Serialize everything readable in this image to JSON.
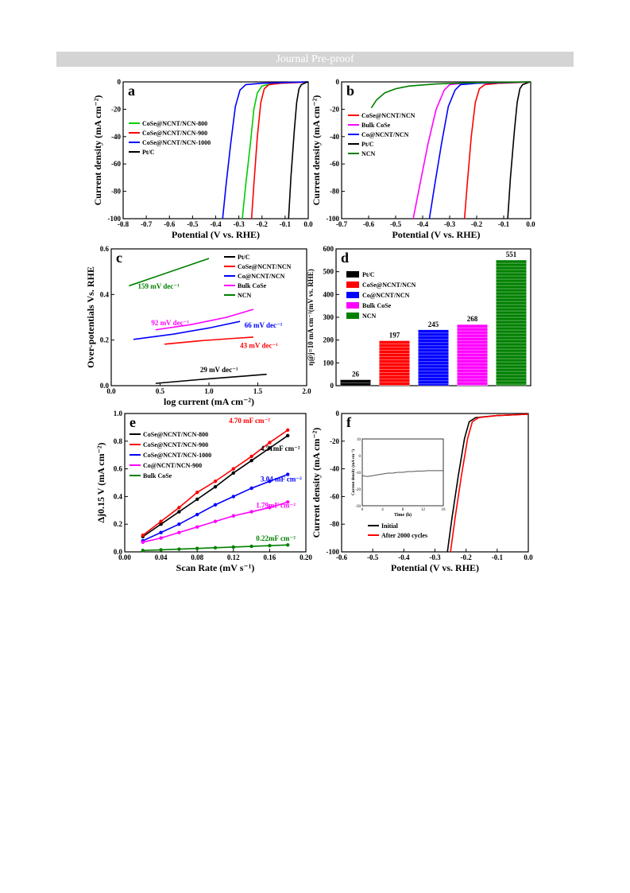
{
  "header": {
    "banner": "Journal Pre-proof"
  },
  "colors": {
    "black": "#000000",
    "red": "#ff0000",
    "blue": "#0000ff",
    "green": "#00cc00",
    "magenta": "#ff00ff",
    "darkgreen": "#008000",
    "banner_bg": "#d4d4d4"
  },
  "chart_data": [
    {
      "id": "a",
      "type": "line",
      "panel_label": "a",
      "xlabel": "Potential (V vs. RHE)",
      "ylabel": "Current density (mA cm⁻²)",
      "xlim": [
        -0.8,
        0.0
      ],
      "ylim": [
        -100,
        0
      ],
      "xticks": [
        "-0.8",
        "-0.7",
        "-0.6",
        "-0.5",
        "-0.4",
        "-0.3",
        "-0.2",
        "-0.1",
        "0.0"
      ],
      "yticks": [
        "-100",
        "-80",
        "-60",
        "-40",
        "-20",
        "0"
      ],
      "series": [
        {
          "name": "CoSe@NCNT/NCN-800",
          "color": "green",
          "x": [
            -0.285,
            -0.27,
            -0.25,
            -0.235,
            -0.22,
            -0.2,
            -0.15,
            -0.1,
            0
          ],
          "y": [
            -100,
            -75,
            -45,
            -20,
            -8,
            -3,
            -1,
            -0.5,
            0
          ]
        },
        {
          "name": "CoSe@NCNT/NCN-900",
          "color": "red",
          "x": [
            -0.245,
            -0.235,
            -0.22,
            -0.205,
            -0.19,
            -0.17,
            -0.12,
            -0.05,
            0
          ],
          "y": [
            -100,
            -75,
            -40,
            -15,
            -5,
            -2,
            -1,
            -0.5,
            0
          ]
        },
        {
          "name": "CoSe@NCNT/NCN-1000",
          "color": "blue",
          "x": [
            -0.37,
            -0.355,
            -0.335,
            -0.315,
            -0.295,
            -0.27,
            -0.2,
            -0.1,
            0
          ],
          "y": [
            -100,
            -75,
            -45,
            -18,
            -6,
            -2,
            -1,
            -0.5,
            0
          ]
        },
        {
          "name": "Pt/C",
          "color": "black",
          "x": [
            -0.085,
            -0.075,
            -0.06,
            -0.05,
            -0.04,
            -0.03,
            -0.01,
            0
          ],
          "y": [
            -100,
            -70,
            -35,
            -15,
            -5,
            -2,
            -0.5,
            0
          ]
        }
      ]
    },
    {
      "id": "b",
      "type": "line",
      "panel_label": "b",
      "xlabel": "Potential (V vs. RHE)",
      "ylabel": "Current density (mA cm⁻²)",
      "xlim": [
        -0.7,
        0.0
      ],
      "ylim": [
        -100,
        0
      ],
      "xticks": [
        "-0.7",
        "-0.6",
        "-0.5",
        "-0.4",
        "-0.3",
        "-0.2",
        "-0.1",
        "0.0"
      ],
      "yticks": [
        "-100",
        "-80",
        "-60",
        "-40",
        "-20",
        "0"
      ],
      "series": [
        {
          "name": "CoSe@NCNT/NCN",
          "color": "red",
          "x": [
            -0.245,
            -0.235,
            -0.22,
            -0.205,
            -0.19,
            -0.17,
            -0.12,
            -0.05,
            0
          ],
          "y": [
            -100,
            -75,
            -40,
            -15,
            -5,
            -2,
            -1,
            -0.5,
            0
          ]
        },
        {
          "name": "Bulk CoSe",
          "color": "magenta",
          "x": [
            -0.435,
            -0.41,
            -0.38,
            -0.35,
            -0.32,
            -0.3,
            -0.25,
            -0.15,
            0
          ],
          "y": [
            -100,
            -75,
            -45,
            -20,
            -6,
            -2,
            -1,
            -0.5,
            0
          ]
        },
        {
          "name": "Co@NCNT/NCN",
          "color": "blue",
          "x": [
            -0.375,
            -0.355,
            -0.33,
            -0.305,
            -0.28,
            -0.26,
            -0.2,
            -0.1,
            0
          ],
          "y": [
            -100,
            -75,
            -45,
            -18,
            -6,
            -2,
            -1,
            -0.5,
            0
          ]
        },
        {
          "name": "Pt/C",
          "color": "black",
          "x": [
            -0.085,
            -0.075,
            -0.06,
            -0.05,
            -0.04,
            -0.03,
            -0.01,
            0
          ],
          "y": [
            -100,
            -70,
            -35,
            -15,
            -5,
            -2,
            -0.5,
            0
          ]
        },
        {
          "name": "NCN",
          "color": "darkgreen",
          "x": [
            -0.59,
            -0.57,
            -0.54,
            -0.5,
            -0.45,
            -0.35,
            -0.2,
            0
          ],
          "y": [
            -19,
            -13,
            -8,
            -5,
            -3,
            -1.5,
            -0.5,
            0
          ]
        }
      ]
    },
    {
      "id": "c",
      "type": "line",
      "panel_label": "c",
      "xlabel": "log current (mA cm⁻²)",
      "ylabel": "Over-potentials Vs. RHE",
      "xlim": [
        0.0,
        2.2
      ],
      "ylim": [
        0.0,
        0.6
      ],
      "xticks": [
        "0.0",
        "0.5",
        "1.0",
        "1.5",
        "2.0"
      ],
      "yticks": [
        "0.0",
        "0.2",
        "0.4",
        "0.6"
      ],
      "series": [
        {
          "name": "Pt/C",
          "color": "black",
          "x": [
            0.5,
            1.0,
            1.5,
            1.75
          ],
          "y": [
            0.01,
            0.027,
            0.042,
            0.05
          ]
        },
        {
          "name": "CoSe@NCNT/NCN",
          "color": "red",
          "x": [
            0.6,
            1.0,
            1.4,
            1.6
          ],
          "y": [
            0.182,
            0.197,
            0.208,
            0.213
          ]
        },
        {
          "name": "Co@NCNT/NCN",
          "color": "blue",
          "x": [
            0.25,
            0.7,
            1.1,
            1.45
          ],
          "y": [
            0.203,
            0.226,
            0.253,
            0.282
          ]
        },
        {
          "name": "Bulk CoSe",
          "color": "magenta",
          "x": [
            0.5,
            0.9,
            1.3,
            1.6
          ],
          "y": [
            0.245,
            0.268,
            0.3,
            0.335
          ]
        },
        {
          "name": "NCN",
          "color": "darkgreen",
          "x": [
            0.2,
            0.5,
            0.8,
            1.1
          ],
          "y": [
            0.438,
            0.478,
            0.518,
            0.558
          ]
        }
      ],
      "annotations": [
        {
          "text": "159 mV dec⁻¹",
          "color": "darkgreen",
          "x": 0.3,
          "y": 0.425
        },
        {
          "text": "92 mV dec⁻¹",
          "color": "magenta",
          "x": 0.45,
          "y": 0.265
        },
        {
          "text": "66 mV dec⁻¹",
          "color": "blue",
          "x": 1.5,
          "y": 0.255
        },
        {
          "text": "43 mV dec⁻¹",
          "color": "red",
          "x": 1.45,
          "y": 0.165
        },
        {
          "text": "29 mV dec⁻¹",
          "color": "black",
          "x": 1.0,
          "y": 0.06
        }
      ]
    },
    {
      "id": "d",
      "type": "bar",
      "panel_label": "d",
      "ylabel": "η@j=10 mA cm⁻²(mV vs. RHE)",
      "ylim": [
        0,
        600
      ],
      "yticks": [
        "0",
        "100",
        "200",
        "300",
        "400",
        "500",
        "600"
      ],
      "categories": [
        "Pt/C",
        "CoSe@NCNT/NCN",
        "Co@NCNT/NCN",
        "Bulk CoSe",
        "NCN"
      ],
      "colors": [
        "black",
        "red",
        "blue",
        "magenta",
        "darkgreen"
      ],
      "values": [
        26,
        197,
        245,
        268,
        551
      ],
      "value_labels": [
        "26",
        "197",
        "245",
        "268",
        "551"
      ]
    },
    {
      "id": "e",
      "type": "scatter",
      "panel_label": "e",
      "xlabel": "Scan Rate (mV s⁻¹)",
      "ylabel": "Δj0.15 V (mA cm⁻²)",
      "xlim": [
        0.0,
        0.2
      ],
      "ylim": [
        0.0,
        1.0
      ],
      "xticks": [
        "0.00",
        "0.04",
        "0.08",
        "0.12",
        "0.16",
        "0.20"
      ],
      "yticks": [
        "0.0",
        "0.2",
        "0.4",
        "0.6",
        "0.8",
        "1.0"
      ],
      "series": [
        {
          "name": "CoSe@NCNT/NCN-800",
          "color": "black",
          "x": [
            0.02,
            0.04,
            0.06,
            0.08,
            0.1,
            0.12,
            0.14,
            0.16,
            0.18
          ],
          "y": [
            0.11,
            0.2,
            0.29,
            0.38,
            0.47,
            0.57,
            0.66,
            0.75,
            0.84
          ]
        },
        {
          "name": "CoSe@NCNT/NCN-900",
          "color": "red",
          "x": [
            0.02,
            0.04,
            0.06,
            0.08,
            0.1,
            0.12,
            0.14,
            0.16,
            0.18
          ],
          "y": [
            0.12,
            0.22,
            0.32,
            0.43,
            0.51,
            0.6,
            0.69,
            0.79,
            0.88
          ]
        },
        {
          "name": "CoSe@NCNT/NCN-1000",
          "color": "blue",
          "x": [
            0.02,
            0.04,
            0.06,
            0.08,
            0.1,
            0.12,
            0.14,
            0.16,
            0.18
          ],
          "y": [
            0.08,
            0.14,
            0.2,
            0.27,
            0.34,
            0.4,
            0.46,
            0.51,
            0.56
          ]
        },
        {
          "name": "Co@NCNT/NCN-900",
          "color": "magenta",
          "x": [
            0.02,
            0.04,
            0.06,
            0.08,
            0.1,
            0.12,
            0.14,
            0.16,
            0.18
          ],
          "y": [
            0.07,
            0.1,
            0.14,
            0.18,
            0.22,
            0.26,
            0.29,
            0.32,
            0.36
          ]
        },
        {
          "name": "Bulk CoSe",
          "color": "darkgreen",
          "x": [
            0.02,
            0.04,
            0.06,
            0.08,
            0.1,
            0.12,
            0.14,
            0.16,
            0.18
          ],
          "y": [
            0.01,
            0.015,
            0.02,
            0.025,
            0.03,
            0.035,
            0.04,
            0.045,
            0.05
          ]
        }
      ],
      "annotations": [
        {
          "text": "4.70 mF cm⁻²",
          "color": "red",
          "x": 0.115,
          "y": 0.93
        },
        {
          "text": "4.51mF cm⁻²",
          "color": "black",
          "x": 0.15,
          "y": 0.73
        },
        {
          "text": "3.04 mF cm⁻²",
          "color": "blue",
          "x": 0.15,
          "y": 0.51
        },
        {
          "text": "1.79mF cm⁻²",
          "color": "magenta",
          "x": 0.145,
          "y": 0.32
        },
        {
          "text": "0.22mF cm⁻²",
          "color": "darkgreen",
          "x": 0.145,
          "y": 0.08
        }
      ]
    },
    {
      "id": "f",
      "type": "line",
      "panel_label": "f",
      "xlabel": "Potential (V vs. RHE)",
      "ylabel": "Current density (mA cm⁻²)",
      "xlim": [
        -0.6,
        0.0
      ],
      "ylim": [
        -100,
        0
      ],
      "xticks": [
        "-0.6",
        "-0.5",
        "-0.4",
        "-0.3",
        "-0.2",
        "-0.1",
        "0.0"
      ],
      "yticks": [
        "-100",
        "-80",
        "-60",
        "-40",
        "-20",
        "0"
      ],
      "series": [
        {
          "name": "Initial",
          "color": "black",
          "x": [
            -0.26,
            -0.245,
            -0.225,
            -0.205,
            -0.19,
            -0.17,
            -0.1,
            0
          ],
          "y": [
            -100,
            -75,
            -45,
            -18,
            -6,
            -3,
            -1.5,
            -0.5
          ]
        },
        {
          "name": "After 2000 cycles",
          "color": "red",
          "x": [
            -0.25,
            -0.235,
            -0.215,
            -0.195,
            -0.18,
            -0.16,
            -0.1,
            0
          ],
          "y": [
            -100,
            -75,
            -45,
            -18,
            -6,
            -3,
            -1.5,
            -0.5
          ]
        }
      ],
      "inset": {
        "xlabel": "Time (h)",
        "ylabel": "Current density (mA cm⁻²)",
        "xlim": [
          0,
          16
        ],
        "ylim": [
          -30,
          10
        ],
        "xticks": [
          "0",
          "4",
          "8",
          "12",
          "16"
        ],
        "yticks": [
          "-30",
          "-20",
          "-10",
          "0",
          "10"
        ],
        "x": [
          0,
          1,
          2,
          3,
          4,
          5,
          6,
          7,
          8,
          9,
          10,
          11,
          12,
          13,
          14,
          15,
          16
        ],
        "y": [
          -12,
          -12.5,
          -12,
          -11.5,
          -11,
          -10.5,
          -10.5,
          -10,
          -10,
          -9.5,
          -9.5,
          -9.2,
          -9.2,
          -9,
          -9,
          -9,
          -9
        ]
      }
    }
  ]
}
